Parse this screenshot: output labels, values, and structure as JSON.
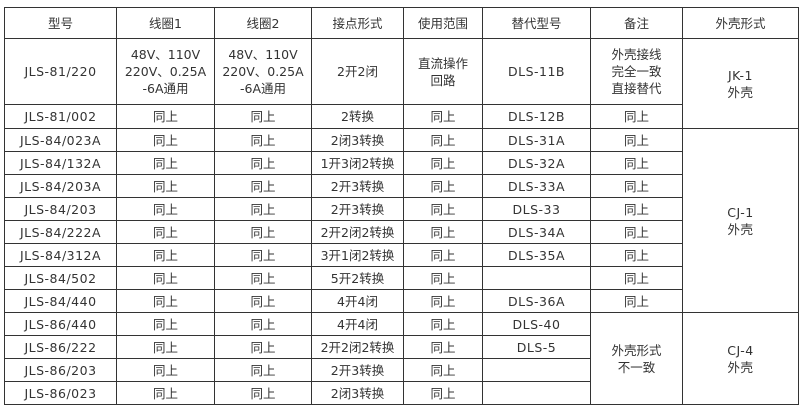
{
  "table": {
    "headers": [
      "型号",
      "线圈1",
      "线圈2",
      "接点形式",
      "使用范围",
      "替代型号",
      "备注",
      "外壳形式"
    ],
    "rows": [
      {
        "model": "JLS-81/220",
        "coil1": "48V、110V\n220V、0.25A\n-6A通用",
        "coil2": "48V、110V\n220V、0.25A\n-6A通用",
        "contact": "2开2闭",
        "scope": "直流操作\n回路",
        "replacement": "DLS-11B",
        "remark": "外壳接线\n完全一致\n直接替代"
      },
      {
        "model": "JLS-81/002",
        "coil1": "同上",
        "coil2": "同上",
        "contact": "2转换",
        "scope": "同上",
        "replacement": "DLS-12B",
        "remark": "同上"
      },
      {
        "model": "JLS-84/023A",
        "coil1": "同上",
        "coil2": "同上",
        "contact": "2闭3转换",
        "scope": "同上",
        "replacement": "DLS-31A",
        "remark": "同上"
      },
      {
        "model": "JLS-84/132A",
        "coil1": "同上",
        "coil2": "同上",
        "contact": "1开3闭2转换",
        "scope": "同上",
        "replacement": "DLS-32A",
        "remark": "同上"
      },
      {
        "model": "JLS-84/203A",
        "coil1": "同上",
        "coil2": "同上",
        "contact": "2开3转换",
        "scope": "同上",
        "replacement": "DLS-33A",
        "remark": "同上"
      },
      {
        "model": "JLS-84/203",
        "coil1": "同上",
        "coil2": "同上",
        "contact": "2开3转换",
        "scope": "同上",
        "replacement": "DLS-33",
        "remark": "同上"
      },
      {
        "model": "JLS-84/222A",
        "coil1": "同上",
        "coil2": "同上",
        "contact": "2开2闭2转换",
        "scope": "同上",
        "replacement": "DLS-34A",
        "remark": "同上"
      },
      {
        "model": "JLS-84/312A",
        "coil1": "同上",
        "coil2": "同上",
        "contact": "3开1闭2转换",
        "scope": "同上",
        "replacement": "DLS-35A",
        "remark": "同上"
      },
      {
        "model": "JLS-84/502",
        "coil1": "同上",
        "coil2": "同上",
        "contact": "5开2转换",
        "scope": "同上",
        "replacement": "",
        "remark": "同上"
      },
      {
        "model": "JLS-84/440",
        "coil1": "同上",
        "coil2": "同上",
        "contact": "4开4闭",
        "scope": "同上",
        "replacement": "DLS-36A",
        "remark": "同上"
      },
      {
        "model": "JLS-86/440",
        "coil1": "同上",
        "coil2": "同上",
        "contact": "4开4闭",
        "scope": "同上",
        "replacement": "DLS-40"
      },
      {
        "model": "JLS-86/222",
        "coil1": "同上",
        "coil2": "同上",
        "contact": "2开2闭2转换",
        "scope": "同上",
        "replacement": "DLS-5"
      },
      {
        "model": "JLS-86/203",
        "coil1": "同上",
        "coil2": "同上",
        "contact": "2开3转换",
        "scope": "同上",
        "replacement": ""
      },
      {
        "model": "JLS-86/023",
        "coil1": "同上",
        "coil2": "同上",
        "contact": "2闭3转换",
        "scope": "同上",
        "replacement": ""
      }
    ],
    "merged_remark": {
      "text": "外壳形式\n不一致",
      "start": 10,
      "span": 4
    },
    "housing": [
      {
        "text": "JK-1\n外壳",
        "start": 0,
        "span": 2
      },
      {
        "text": "CJ-1\n外壳",
        "start": 2,
        "span": 8
      },
      {
        "text": "CJ-4\n外壳",
        "start": 10,
        "span": 4
      }
    ]
  }
}
